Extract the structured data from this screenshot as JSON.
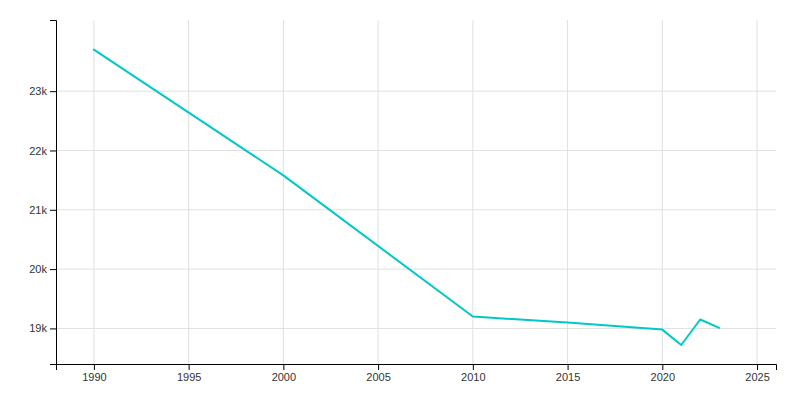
{
  "chart_data": {
    "type": "line",
    "x": [
      1990,
      2000,
      2010,
      2015,
      2020,
      2021,
      2022,
      2023
    ],
    "values": [
      23700,
      21580,
      19200,
      19100,
      18980,
      18720,
      19150,
      19010
    ],
    "color": "#00C8C8",
    "xlim": [
      1988,
      2026
    ],
    "ylim": [
      18400,
      24200
    ],
    "xticks": [
      1990,
      1995,
      2000,
      2005,
      2010,
      2015,
      2020,
      2025
    ],
    "yticks": [
      {
        "value": 19000,
        "label": "19k"
      },
      {
        "value": 20000,
        "label": "20k"
      },
      {
        "value": 21000,
        "label": "21k"
      },
      {
        "value": 22000,
        "label": "22k"
      },
      {
        "value": 23000,
        "label": "23k"
      }
    ],
    "grid": true
  }
}
